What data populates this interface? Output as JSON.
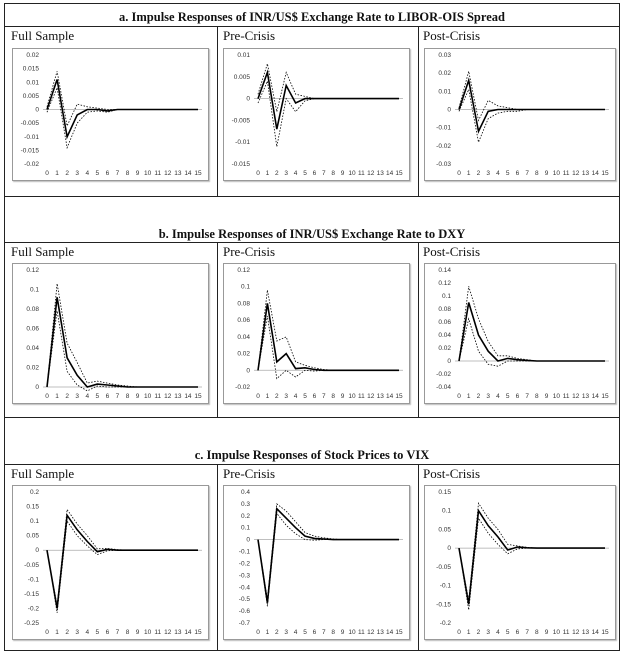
{
  "sections": [
    {
      "title": "a.   Impulse Responses of INR/US$ Exchange Rate to LIBOR-OIS Spread",
      "panels": [
        "Full Sample",
        "Pre-Crisis",
        "Post-Crisis"
      ]
    },
    {
      "title": "b.   Impulse Responses of INR/US$ Exchange Rate to DXY",
      "panels": [
        "Full Sample",
        "Pre-Crisis",
        "Post-Crisis"
      ]
    },
    {
      "title": "c.   Impulse Responses of Stock Prices to VIX",
      "panels": [
        "Full Sample",
        "Pre-Crisis",
        "Post-Crisis"
      ]
    }
  ],
  "chart_data": [
    {
      "type": "line",
      "title": "Full Sample",
      "section": "a",
      "x": [
        0,
        1,
        2,
        3,
        4,
        5,
        6,
        7,
        8,
        9,
        10,
        11,
        12,
        13,
        14,
        15
      ],
      "yticks": [
        "0.02",
        "0.015",
        "0.01",
        "0.005",
        "0",
        "-0.005",
        "-0.01",
        "-0.015",
        "-0.02"
      ],
      "ylim": [
        -0.02,
        0.02
      ],
      "series": [
        {
          "values": [
            0,
            0.011,
            -0.01,
            -0.002,
            0,
            0,
            -0.0005,
            0,
            0,
            0,
            0,
            0,
            0,
            0,
            0,
            0
          ]
        },
        {
          "values": [
            0.001,
            0.014,
            -0.006,
            0.002,
            0.001,
            0.0005,
            0,
            0,
            0,
            0,
            0,
            0,
            0,
            0,
            0,
            0
          ]
        },
        {
          "values": [
            -0.001,
            0.008,
            -0.014,
            -0.005,
            -0.001,
            -0.0005,
            -0.001,
            0,
            0,
            0,
            0,
            0,
            0,
            0,
            0,
            0
          ]
        }
      ]
    },
    {
      "type": "line",
      "title": "Pre-Crisis",
      "section": "a",
      "x": [
        0,
        1,
        2,
        3,
        4,
        5,
        6,
        7,
        8,
        9,
        10,
        11,
        12,
        13,
        14,
        15
      ],
      "yticks": [
        "0.01",
        "0.005",
        "0",
        "-0.005",
        "-0.01",
        "-0.015"
      ],
      "ylim": [
        -0.015,
        0.01
      ],
      "series": [
        {
          "values": [
            0,
            0.006,
            -0.007,
            0.003,
            -0.001,
            0,
            0,
            0,
            0,
            0,
            0,
            0,
            0,
            0,
            0,
            0
          ]
        },
        {
          "values": [
            0.001,
            0.008,
            -0.003,
            0.006,
            0.001,
            0.0005,
            0,
            0,
            0,
            0,
            0,
            0,
            0,
            0,
            0,
            0
          ]
        },
        {
          "values": [
            -0.001,
            0.004,
            -0.011,
            0,
            -0.003,
            -0.0005,
            0,
            0,
            0,
            0,
            0,
            0,
            0,
            0,
            0,
            0
          ]
        }
      ]
    },
    {
      "type": "line",
      "title": "Post-Crisis",
      "section": "a",
      "x": [
        0,
        1,
        2,
        3,
        4,
        5,
        6,
        7,
        8,
        9,
        10,
        11,
        12,
        13,
        14,
        15
      ],
      "yticks": [
        "0.03",
        "0.02",
        "0.01",
        "0",
        "-0.01",
        "-0.02",
        "-0.03"
      ],
      "ylim": [
        -0.03,
        0.03
      ],
      "series": [
        {
          "values": [
            0,
            0.016,
            -0.012,
            -0.001,
            0,
            0,
            0,
            0,
            0,
            0,
            0,
            0,
            0,
            0,
            0,
            0
          ]
        },
        {
          "values": [
            0.001,
            0.021,
            -0.006,
            0.005,
            0.002,
            0.001,
            0,
            0,
            0,
            0,
            0,
            0,
            0,
            0,
            0,
            0
          ]
        },
        {
          "values": [
            -0.001,
            0.011,
            -0.018,
            -0.005,
            -0.002,
            -0.001,
            -0.001,
            0,
            0,
            0,
            0,
            0,
            0,
            0,
            0,
            0
          ]
        }
      ]
    },
    {
      "type": "line",
      "title": "Full Sample",
      "section": "b",
      "x": [
        0,
        1,
        2,
        3,
        4,
        5,
        6,
        7,
        8,
        9,
        10,
        11,
        12,
        13,
        14,
        15
      ],
      "yticks": [
        "0.12",
        "0.1",
        "0.08",
        "0.06",
        "0.04",
        "0.02",
        "0"
      ],
      "ylim": [
        0,
        0.12
      ],
      "series": [
        {
          "values": [
            0,
            0.092,
            0.03,
            0.012,
            0.0,
            0.003,
            0.002,
            0.001,
            0,
            0,
            0,
            0,
            0,
            0,
            0,
            0
          ]
        },
        {
          "values": [
            0,
            0.106,
            0.045,
            0.025,
            0.004,
            0.006,
            0.004,
            0.002,
            0.001,
            0,
            0,
            0,
            0,
            0,
            0,
            0
          ]
        },
        {
          "values": [
            0,
            0.078,
            0.016,
            0.002,
            -0.004,
            0.001,
            0.0,
            0,
            0,
            0,
            0,
            0,
            0,
            0,
            0,
            0
          ]
        }
      ]
    },
    {
      "type": "line",
      "title": "Pre-Crisis",
      "section": "b",
      "x": [
        0,
        1,
        2,
        3,
        4,
        5,
        6,
        7,
        8,
        9,
        10,
        11,
        12,
        13,
        14,
        15
      ],
      "yticks": [
        "0.12",
        "0.1",
        "0.08",
        "0.06",
        "0.04",
        "0.02",
        "0",
        "-0.02"
      ],
      "ylim": [
        -0.02,
        0.12
      ],
      "series": [
        {
          "values": [
            0,
            0.08,
            0.01,
            0.02,
            0.002,
            0.003,
            0.001,
            0,
            0,
            0,
            0,
            0,
            0,
            0,
            0,
            0
          ]
        },
        {
          "values": [
            0,
            0.096,
            0.035,
            0.04,
            0.01,
            0.006,
            0.003,
            0.001,
            0,
            0,
            0,
            0,
            0,
            0,
            0,
            0
          ]
        },
        {
          "values": [
            0,
            0.065,
            -0.01,
            0.0,
            -0.008,
            0.0,
            -0.001,
            0,
            0,
            0,
            0,
            0,
            0,
            0,
            0,
            0
          ]
        }
      ]
    },
    {
      "type": "line",
      "title": "Post-Crisis",
      "section": "b",
      "x": [
        0,
        1,
        2,
        3,
        4,
        5,
        6,
        7,
        8,
        9,
        10,
        11,
        12,
        13,
        14,
        15
      ],
      "yticks": [
        "0.14",
        "0.12",
        "0.1",
        "0.08",
        "0.06",
        "0.04",
        "0.02",
        "0",
        "-0.02",
        "-0.04"
      ],
      "ylim": [
        -0.04,
        0.14
      ],
      "series": [
        {
          "values": [
            0,
            0.09,
            0.04,
            0.015,
            0.0,
            0.004,
            0.002,
            0.001,
            0,
            0,
            0,
            0,
            0,
            0,
            0,
            0
          ]
        },
        {
          "values": [
            0,
            0.115,
            0.065,
            0.03,
            0.008,
            0.008,
            0.004,
            0.002,
            0,
            0,
            0,
            0,
            0,
            0,
            0,
            0
          ]
        },
        {
          "values": [
            0,
            0.065,
            0.015,
            -0.005,
            -0.008,
            0.0,
            0.0,
            0,
            0,
            0,
            0,
            0,
            0,
            0,
            0,
            0
          ]
        }
      ]
    },
    {
      "type": "line",
      "title": "Full Sample",
      "section": "c",
      "x": [
        0,
        1,
        2,
        3,
        4,
        5,
        6,
        7,
        8,
        9,
        10,
        11,
        12,
        13,
        14,
        15
      ],
      "yticks": [
        "0.2",
        "0.15",
        "0.1",
        "0.05",
        "0",
        "-0.05",
        "-0.1",
        "-0.15",
        "-0.2",
        "-0.25"
      ],
      "ylim": [
        -0.25,
        0.2
      ],
      "series": [
        {
          "values": [
            0,
            -0.2,
            0.12,
            0.07,
            0.03,
            -0.005,
            0.003,
            0.0,
            0,
            0,
            0,
            0,
            0,
            0,
            0,
            0
          ]
        },
        {
          "values": [
            0,
            -0.19,
            0.14,
            0.09,
            0.05,
            0.005,
            0.006,
            0.002,
            0,
            0,
            0,
            0,
            0,
            0,
            0,
            0
          ]
        },
        {
          "values": [
            0,
            -0.215,
            0.1,
            0.05,
            0.015,
            -0.015,
            -0.002,
            0,
            0,
            0,
            0,
            0,
            0,
            0,
            0,
            0
          ]
        }
      ]
    },
    {
      "type": "line",
      "title": "Pre-Crisis",
      "section": "c",
      "x": [
        0,
        1,
        2,
        3,
        4,
        5,
        6,
        7,
        8,
        9,
        10,
        11,
        12,
        13,
        14,
        15
      ],
      "yticks": [
        "0.4",
        "0.3",
        "0.2",
        "0.1",
        "0",
        "-0.1",
        "-0.2",
        "-0.3",
        "-0.4",
        "-0.5",
        "-0.6",
        "-0.7"
      ],
      "ylim": [
        -0.7,
        0.4
      ],
      "series": [
        {
          "values": [
            0,
            -0.53,
            0.26,
            0.18,
            0.1,
            0.03,
            0.01,
            0.005,
            0,
            0,
            0,
            0,
            0,
            0,
            0,
            0
          ]
        },
        {
          "values": [
            0,
            -0.5,
            0.3,
            0.24,
            0.15,
            0.06,
            0.03,
            0.015,
            0.005,
            0,
            0,
            0,
            0,
            0,
            0,
            0
          ]
        },
        {
          "values": [
            0,
            -0.56,
            0.22,
            0.12,
            0.05,
            0.0,
            -0.005,
            0,
            0,
            0,
            0,
            0,
            0,
            0,
            0,
            0
          ]
        }
      ]
    },
    {
      "type": "line",
      "title": "Post-Crisis",
      "section": "c",
      "x": [
        0,
        1,
        2,
        3,
        4,
        5,
        6,
        7,
        8,
        9,
        10,
        11,
        12,
        13,
        14,
        15
      ],
      "yticks": [
        "0.15",
        "0.1",
        "0.05",
        "0",
        "-0.05",
        "-0.1",
        "-0.15",
        "-0.2"
      ],
      "ylim": [
        -0.2,
        0.15
      ],
      "series": [
        {
          "values": [
            0,
            -0.15,
            0.1,
            0.06,
            0.03,
            -0.005,
            0.003,
            0.001,
            0,
            0,
            0,
            0,
            0,
            0,
            0,
            0
          ]
        },
        {
          "values": [
            0,
            -0.14,
            0.12,
            0.08,
            0.05,
            0.01,
            0.006,
            0.002,
            0,
            0,
            0,
            0,
            0,
            0,
            0,
            0
          ]
        },
        {
          "values": [
            0,
            -0.165,
            0.08,
            0.04,
            0.01,
            -0.015,
            -0.002,
            0,
            0,
            0,
            0,
            0,
            0,
            0,
            0,
            0
          ]
        }
      ]
    }
  ]
}
